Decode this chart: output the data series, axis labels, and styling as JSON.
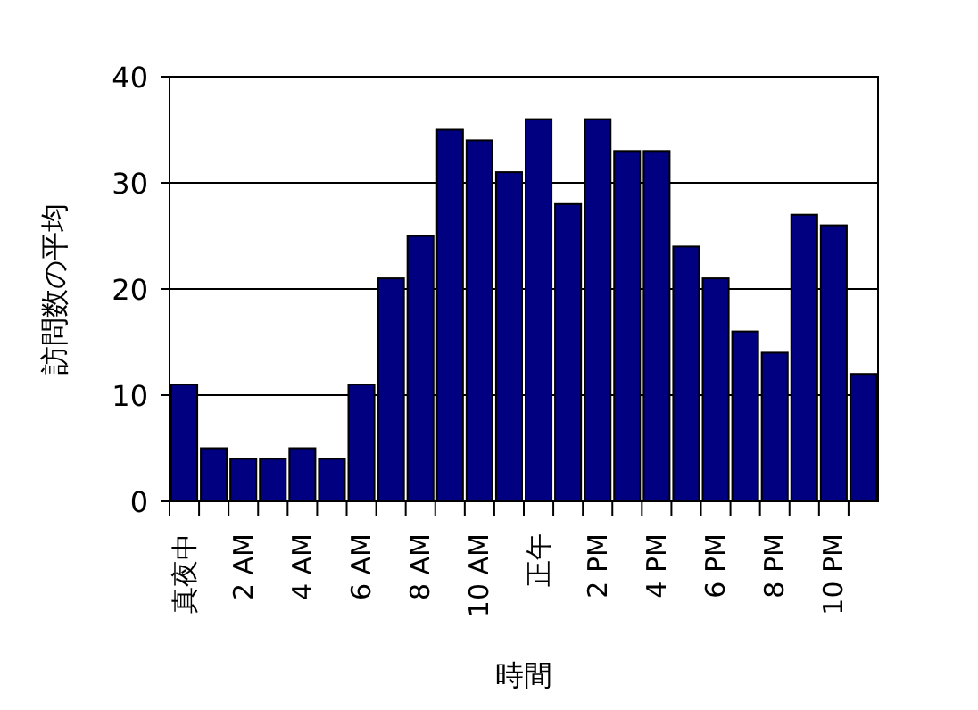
{
  "chart_data": {
    "type": "bar",
    "xlabel": "時間",
    "ylabel": "訪問数の平均",
    "categories": [
      "真夜中",
      null,
      "2 AM",
      null,
      "4 AM",
      null,
      "6 AM",
      null,
      "8 AM",
      null,
      "10 AM",
      null,
      "正午",
      null,
      "2 PM",
      null,
      "4 PM",
      null,
      "6 PM",
      null,
      "8 PM",
      null,
      "10 PM",
      null
    ],
    "values": [
      11,
      5,
      4,
      4,
      5,
      4,
      11,
      21,
      25,
      35,
      34,
      31,
      36,
      28,
      36,
      33,
      33,
      24,
      21,
      16,
      14,
      27,
      26,
      12
    ],
    "color": "#000080",
    "ylim": [
      0,
      40
    ],
    "yticks": [
      0,
      10,
      20,
      30,
      40
    ],
    "grid": "y"
  }
}
